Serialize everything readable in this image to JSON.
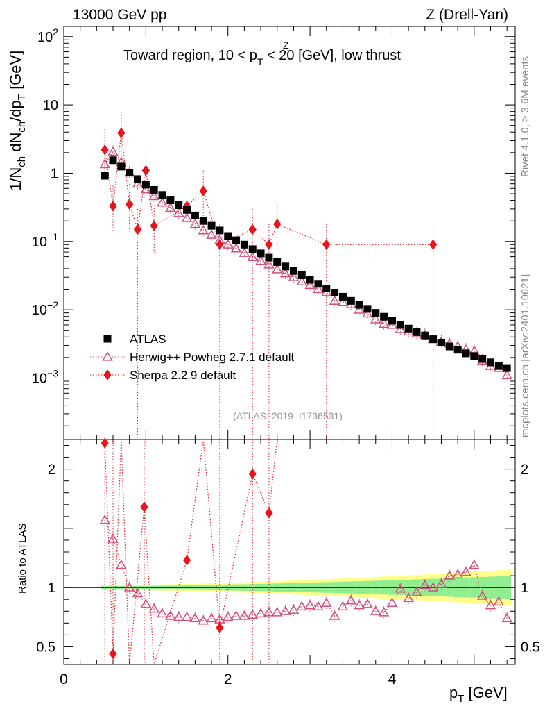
{
  "chart_data": {
    "type": "scatter",
    "header_left": "13000 GeV pp",
    "header_right": "Z (Drell-Yan)",
    "title_main": "Toward region, 10 < p",
    "title_sup": "Z",
    "title_sub": "T",
    "title_tail": " < 20 [GeV], low thrust",
    "ylabel_top": "1/N",
    "ylabel_sub1": "ch",
    "ylabel_mid": " dN",
    "ylabel_sub2": "ch",
    "ylabel_tail": "/dp",
    "ylabel_sub3": "T",
    "ylabel_unit": " [GeV]",
    "ylabel_ratio": "Ratio to ATLAS",
    "xlabel_main": "p",
    "xlabel_sub": "T",
    "xlabel_unit": " [GeV]",
    "side_left": "Rivet 4.1.0, ≥ 3.6M events",
    "side_right": "mcplots.cern.ch [arXiv:2401.10621]",
    "watermark": "(ATLAS_2019_I1736531)",
    "xlim": [
      0,
      5.5
    ],
    "ylim_main_log10": [
      -3.9,
      2.15
    ],
    "ylim_ratio": [
      0.35,
      2.25
    ],
    "x_ticks": [
      0,
      2,
      4
    ],
    "x_tick_labels": [
      "0",
      "2",
      "4"
    ],
    "y_ticks_main": [
      {
        "base": "10",
        "exp": "2",
        "value": 100
      },
      {
        "base": "10",
        "exp": "",
        "value": 10
      },
      {
        "base": "1",
        "exp": "",
        "value": 1
      },
      {
        "base": "10",
        "exp": "−1",
        "value": 0.1
      },
      {
        "base": "10",
        "exp": "−2",
        "value": 0.01
      },
      {
        "base": "10",
        "exp": "−3",
        "value": 0.001
      }
    ],
    "y_ticks_ratio": [
      {
        "label": "2",
        "value": 2
      },
      {
        "label": "1",
        "value": 1
      },
      {
        "label": "0.5",
        "value": 0.5
      }
    ],
    "legend": [
      {
        "name": "ATLAS",
        "marker": "square",
        "color": "#000000"
      },
      {
        "name": "Herwig++ Powheg 2.7.1 default",
        "marker": "triangle",
        "color": "#d0507f"
      },
      {
        "name": "Sherpa 2.2.9 default",
        "marker": "diamond",
        "color": "#e8151d"
      }
    ],
    "colors": {
      "data": "#000000",
      "herwig": "#d0507f",
      "sherpa": "#e8151d",
      "band_inner": "#90ee90",
      "band_outer": "#ffff8a"
    },
    "x": [
      0.5,
      0.6,
      0.7,
      0.8,
      0.9,
      1.0,
      1.1,
      1.2,
      1.3,
      1.4,
      1.5,
      1.6,
      1.7,
      1.8,
      1.9,
      2.0,
      2.1,
      2.2,
      2.3,
      2.4,
      2.5,
      2.6,
      2.7,
      2.8,
      2.9,
      3.0,
      3.1,
      3.2,
      3.3,
      3.4,
      3.5,
      3.6,
      3.7,
      3.8,
      3.9,
      4.0,
      4.1,
      4.2,
      4.3,
      4.4,
      4.5,
      4.6,
      4.7,
      4.8,
      4.9,
      5.0,
      5.1,
      5.2,
      5.3,
      5.4
    ],
    "series": [
      {
        "name": "ATLAS",
        "values": [
          0.92,
          1.55,
          1.25,
          1.02,
          0.82,
          0.68,
          0.57,
          0.48,
          0.4,
          0.34,
          0.29,
          0.24,
          0.2,
          0.17,
          0.145,
          0.12,
          0.104,
          0.09,
          0.077,
          0.067,
          0.058,
          0.05,
          0.043,
          0.037,
          0.032,
          0.0275,
          0.024,
          0.0205,
          0.0178,
          0.0155,
          0.0135,
          0.0118,
          0.0103,
          0.009,
          0.0079,
          0.0069,
          0.006,
          0.0053,
          0.0047,
          0.0042,
          0.0037,
          0.0033,
          0.0029,
          0.0026,
          0.0023,
          0.0021,
          0.0019,
          0.0017,
          0.0015,
          0.0014
        ]
      },
      {
        "name": "Herwig++ Powheg 2.7.1 default",
        "values": [
          1.35,
          2.05,
          1.45,
          1.02,
          0.7,
          0.58,
          0.46,
          0.37,
          0.31,
          0.26,
          0.22,
          0.18,
          0.145,
          0.125,
          0.105,
          0.09,
          0.079,
          0.068,
          0.059,
          0.052,
          0.046,
          0.039,
          0.034,
          0.03,
          0.026,
          0.023,
          0.02,
          0.018,
          0.0135,
          0.013,
          0.012,
          0.01,
          0.0088,
          0.0072,
          0.0062,
          0.006,
          0.0052,
          0.0048,
          0.0045,
          0.0043,
          0.0037,
          0.0034,
          0.0032,
          0.0029,
          0.0026,
          0.0025,
          0.0018,
          0.0015,
          0.0014,
          0.0011
        ],
        "ratio": [
          1.57,
          1.41,
          1.19,
          1.0,
          0.95,
          0.86,
          0.82,
          0.78,
          0.76,
          0.75,
          0.75,
          0.74,
          0.72,
          0.74,
          0.73,
          0.75,
          0.76,
          0.76,
          0.77,
          0.78,
          0.79,
          0.79,
          0.8,
          0.81,
          0.84,
          0.85,
          0.84,
          0.87,
          0.76,
          0.84,
          0.89,
          0.85,
          0.86,
          0.8,
          0.79,
          0.87,
          0.99,
          0.91,
          0.96,
          1.02,
          1.0,
          1.03,
          1.1,
          1.11,
          1.13,
          1.19,
          0.93,
          0.85,
          0.88,
          0.74
        ]
      },
      {
        "name": "Sherpa 2.2.9 default",
        "x": [
          0.5,
          0.6,
          0.7,
          0.8,
          0.9,
          1.0,
          1.1,
          1.5,
          1.7,
          1.9,
          2.3,
          2.5,
          2.6,
          3.2,
          4.5
        ],
        "values": [
          2.2,
          0.33,
          3.9,
          0.35,
          0.15,
          1.1,
          0.17,
          0.33,
          0.55,
          0.09,
          0.15,
          0.09,
          0.18,
          0.09,
          0.09
        ],
        "ratio_x": [
          0.5,
          0.6,
          0.98,
          1.5,
          1.9,
          2.3,
          2.5
        ],
        "ratio": [
          2.22,
          0.44,
          1.68,
          1.23,
          0.66,
          1.96,
          1.63
        ]
      }
    ]
  }
}
